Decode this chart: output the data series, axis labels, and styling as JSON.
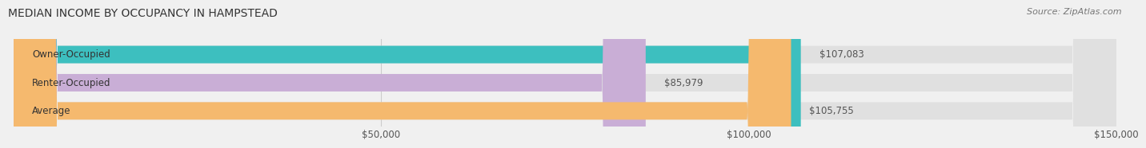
{
  "title": "MEDIAN INCOME BY OCCUPANCY IN HAMPSTEAD",
  "source": "Source: ZipAtlas.com",
  "categories": [
    "Owner-Occupied",
    "Renter-Occupied",
    "Average"
  ],
  "values": [
    107083,
    85979,
    105755
  ],
  "labels": [
    "$107,083",
    "$85,979",
    "$105,755"
  ],
  "bar_colors": [
    "#3dbfbf",
    "#c9aed6",
    "#f5b96e"
  ],
  "background_color": "#f0f0f0",
  "bar_bg_color": "#e0e0e0",
  "xlim": [
    0,
    150000
  ],
  "xticks": [
    50000,
    100000,
    150000
  ],
  "xtick_labels": [
    "$50,000",
    "$100,000",
    "$150,000"
  ],
  "title_fontsize": 10,
  "source_fontsize": 8,
  "label_fontsize": 8.5,
  "category_fontsize": 8.5
}
